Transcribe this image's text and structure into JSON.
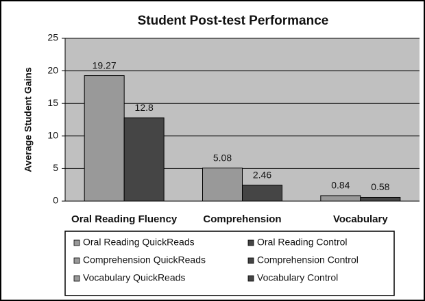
{
  "chart_data": {
    "type": "bar",
    "title": "Student Post-test Performance",
    "y_label": "Average Student Gains",
    "categories": [
      "Oral Reading Fluency",
      "Comprehension",
      "Vocabulary"
    ],
    "series": [
      {
        "name": "Oral Reading QuickReads",
        "color": "#999999",
        "values": [
          19.27,
          null,
          null
        ]
      },
      {
        "name": "Oral Reading Control",
        "color": "#454545",
        "values": [
          12.8,
          null,
          null
        ]
      },
      {
        "name": "Comprehension QuickReads",
        "color": "#999999",
        "values": [
          null,
          5.08,
          null
        ]
      },
      {
        "name": "Comprehension Control",
        "color": "#454545",
        "values": [
          null,
          2.46,
          null
        ]
      },
      {
        "name": "Vocabulary QuickReads",
        "color": "#999999",
        "values": [
          null,
          null,
          0.84
        ]
      },
      {
        "name": "Vocabulary Control",
        "color": "#454545",
        "values": [
          null,
          null,
          0.58
        ]
      }
    ],
    "ylim": [
      0,
      25
    ],
    "yticks": [
      0,
      5,
      10,
      15,
      20,
      25
    ],
    "grid": true
  }
}
